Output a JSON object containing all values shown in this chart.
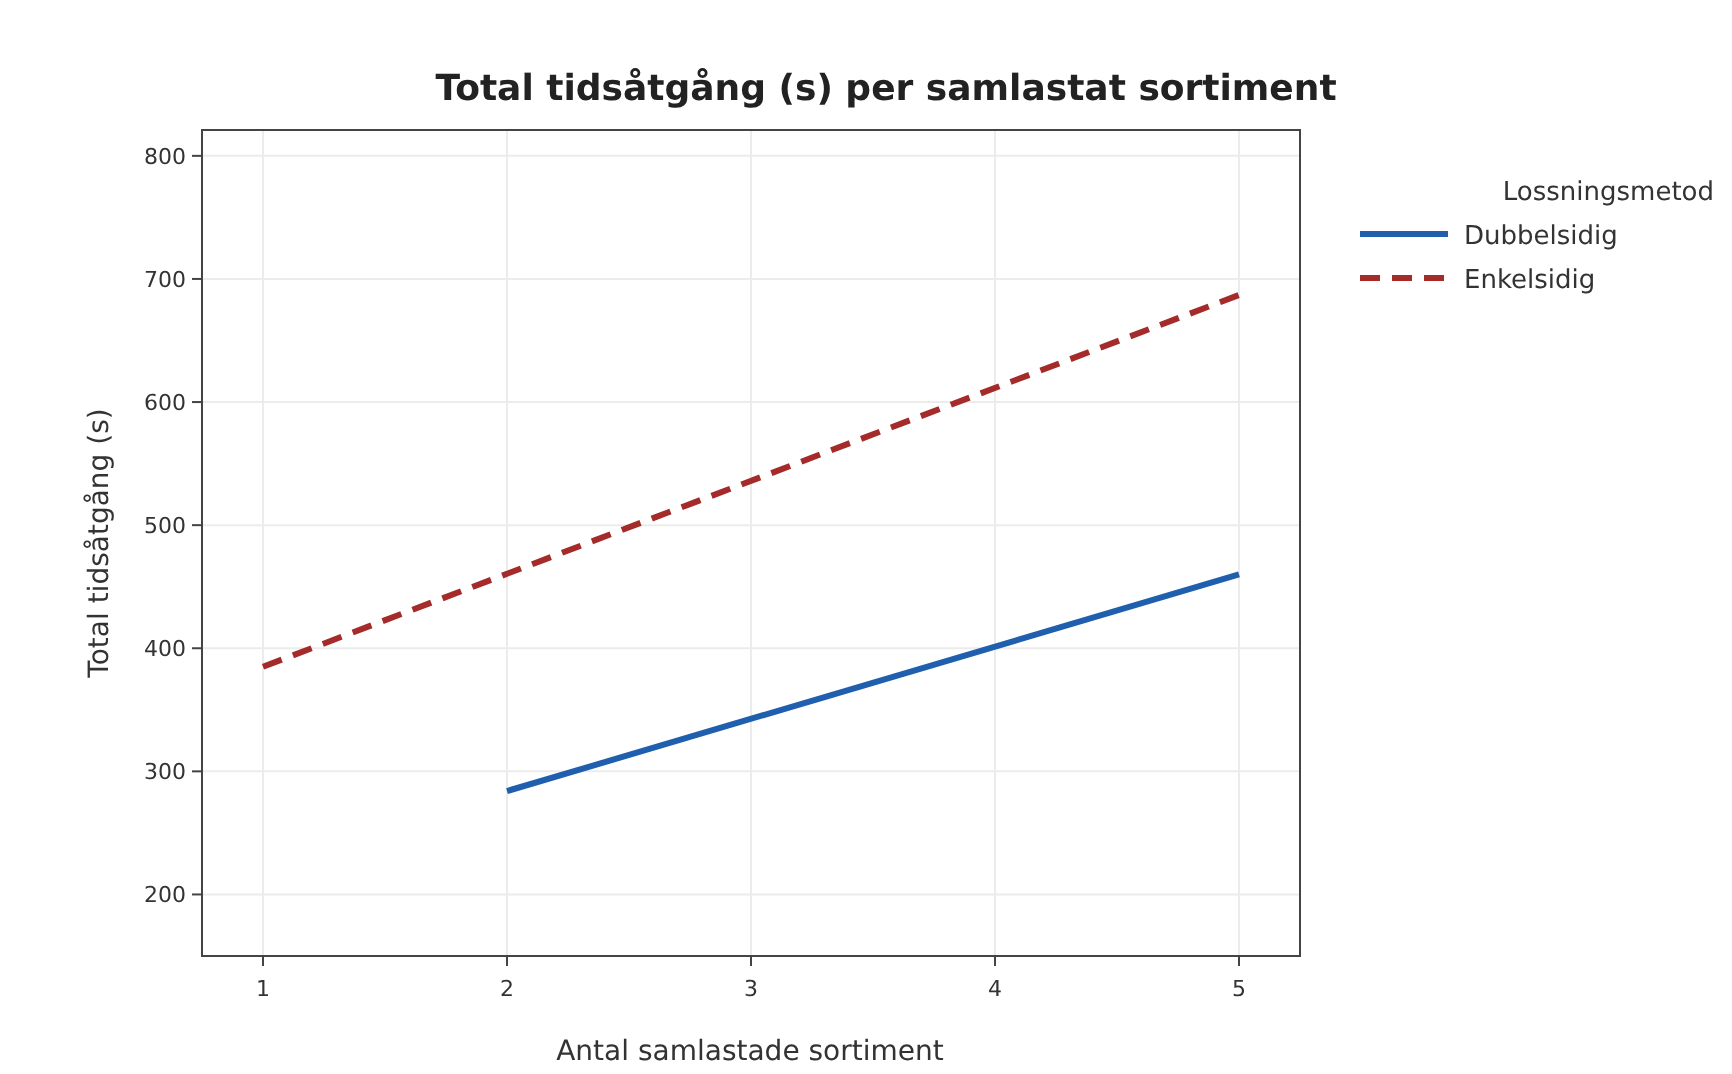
{
  "chart_data": {
    "type": "line",
    "title": "Total tidsåtgång (s) per samlastat sortiment",
    "xlabel": "Antal samlastade sortiment",
    "ylabel": "Total tidsåtgång (s)",
    "legend_title": "Lossningsmetod",
    "xlim": [
      0.75,
      5.25
    ],
    "xticks": [
      1,
      2,
      3,
      4,
      5
    ],
    "ylim": [
      150,
      821
    ],
    "yticks": [
      200,
      300,
      400,
      500,
      600,
      700,
      800
    ],
    "grid": true,
    "legend": "right",
    "marker": "none",
    "series": [
      {
        "name": "Dubbelsidig",
        "color": "#1f5fad",
        "x": [
          2,
          5
        ],
        "values": [
          284,
          460
        ],
        "line_style": "solid"
      },
      {
        "name": "Enkelsidig",
        "color": "#a52a2a",
        "x": [
          1,
          5
        ],
        "values": [
          385,
          687
        ],
        "line_style": "dashed"
      }
    ]
  }
}
